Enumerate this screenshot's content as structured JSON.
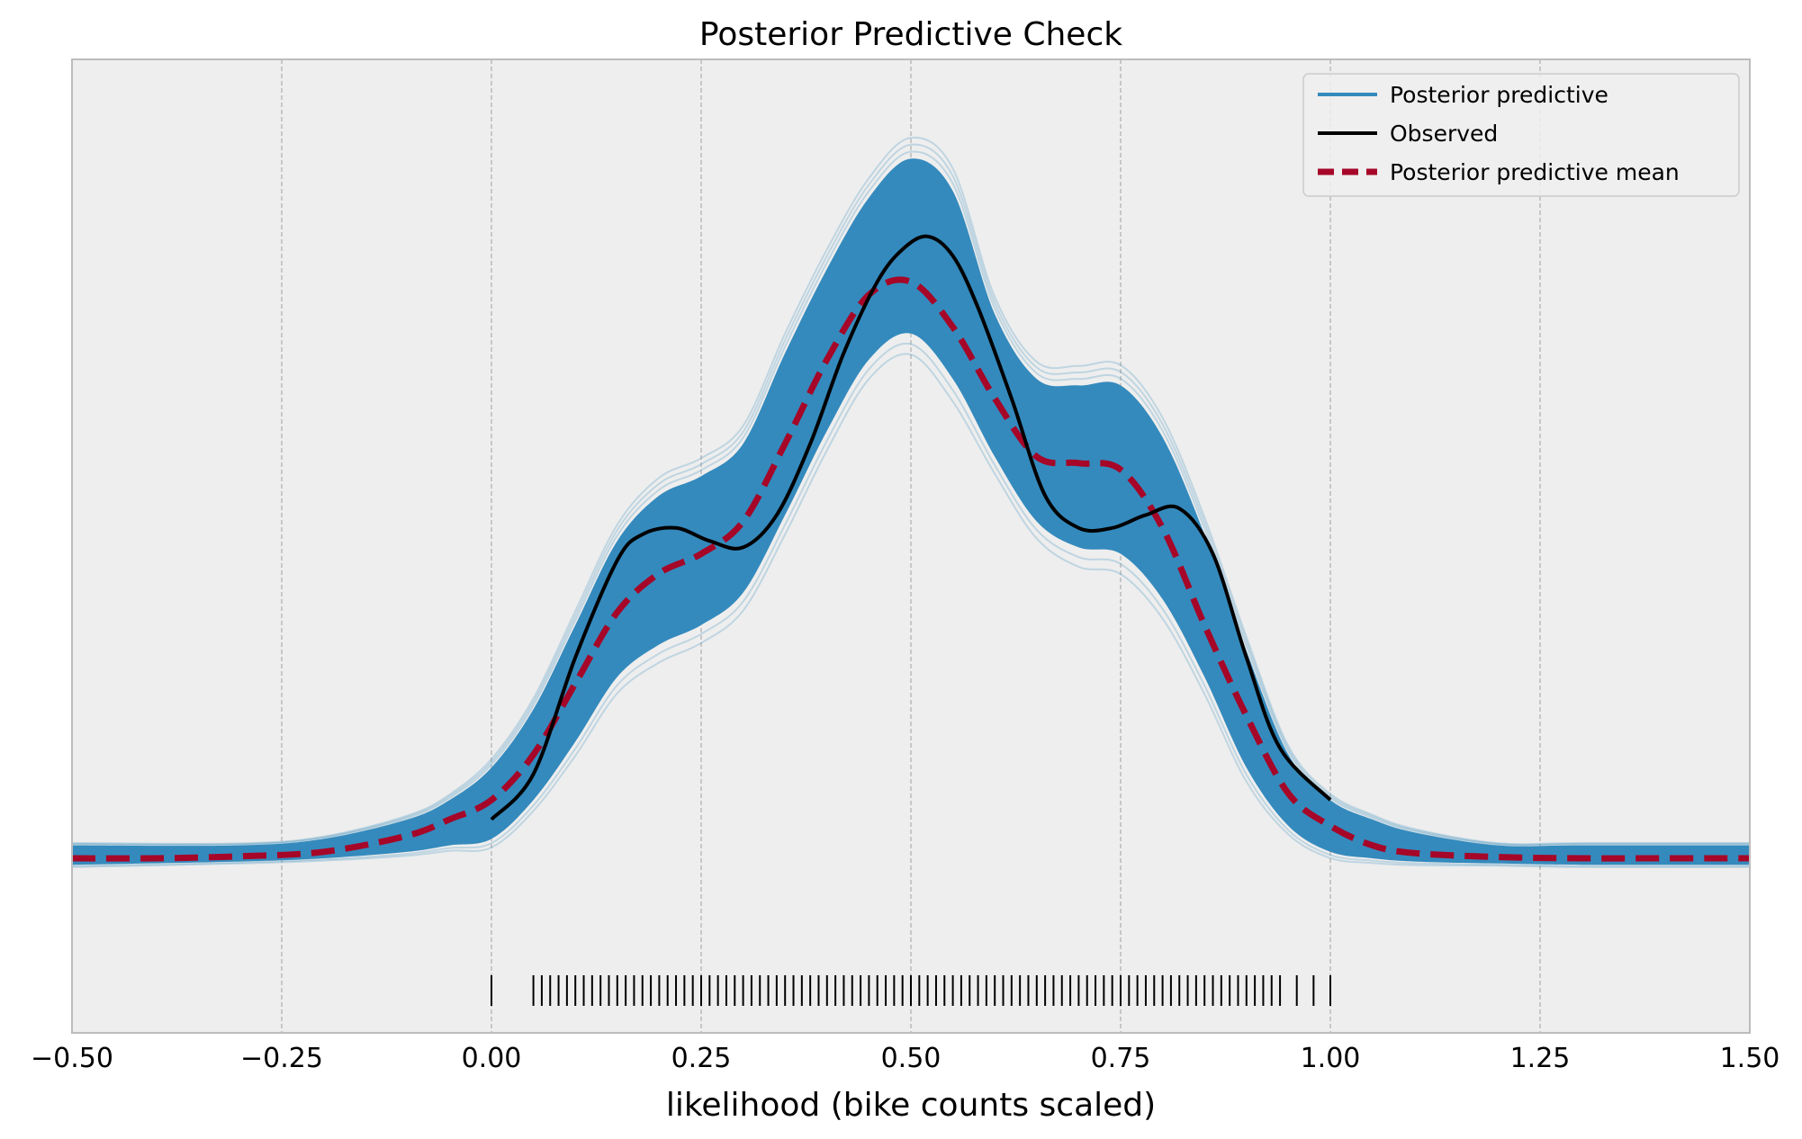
{
  "chart_data": {
    "type": "line",
    "title": "Posterior Predictive Check",
    "xlabel": "likelihood (bike counts scaled)",
    "ylabel": "",
    "xlim": [
      -0.5,
      1.5
    ],
    "ylim": [
      -0.28,
      1.0
    ],
    "y_ticks_shown": false,
    "x_ticks": [
      -0.5,
      -0.25,
      0.0,
      0.25,
      0.5,
      0.75,
      1.0,
      1.25,
      1.5
    ],
    "x_tick_labels": [
      "−0.50",
      "−0.25",
      "0.00",
      "0.25",
      "0.50",
      "0.75",
      "1.00",
      "1.25",
      "1.50"
    ],
    "grid": "vertical dashed",
    "legend_position": "top-right",
    "colors": {
      "posterior_predictive": "#348abd",
      "observed": "#000000",
      "posterior_predictive_mean": "#a60628",
      "axes_background": "#eeeeee",
      "axes_border": "#bcbcbc",
      "grid": "#b2b2b2"
    },
    "series": [
      {
        "name": "Observed",
        "style": "solid",
        "x": [
          0.0,
          0.05,
          0.1,
          0.15,
          0.18,
          0.22,
          0.26,
          0.3,
          0.34,
          0.38,
          0.42,
          0.46,
          0.49,
          0.52,
          0.55,
          0.58,
          0.62,
          0.66,
          0.7,
          0.74,
          0.78,
          0.82,
          0.86,
          0.9,
          0.94,
          1.0
        ],
        "y": [
          0.06,
          0.13,
          0.31,
          0.46,
          0.5,
          0.51,
          0.49,
          0.48,
          0.53,
          0.64,
          0.78,
          0.89,
          0.94,
          0.96,
          0.93,
          0.85,
          0.71,
          0.56,
          0.51,
          0.51,
          0.53,
          0.54,
          0.47,
          0.31,
          0.17,
          0.09
        ]
      },
      {
        "name": "Posterior predictive mean",
        "style": "dashed",
        "x": [
          -0.5,
          -0.4,
          -0.3,
          -0.2,
          -0.1,
          -0.05,
          0.0,
          0.05,
          0.1,
          0.15,
          0.2,
          0.25,
          0.3,
          0.35,
          0.4,
          0.45,
          0.5,
          0.55,
          0.6,
          0.65,
          0.7,
          0.75,
          0.8,
          0.85,
          0.9,
          0.95,
          1.0,
          1.05,
          1.1,
          1.2,
          1.3,
          1.4,
          1.5
        ],
        "y": [
          0.0,
          0.0,
          0.003,
          0.01,
          0.035,
          0.06,
          0.09,
          0.16,
          0.27,
          0.38,
          0.44,
          0.47,
          0.52,
          0.64,
          0.77,
          0.87,
          0.89,
          0.82,
          0.71,
          0.62,
          0.61,
          0.6,
          0.51,
          0.36,
          0.22,
          0.1,
          0.05,
          0.02,
          0.008,
          0.002,
          0.0,
          0.0,
          0.0
        ]
      },
      {
        "name": "Posterior predictive",
        "style": "band of many draws",
        "x": [
          -0.5,
          -0.3,
          -0.2,
          -0.1,
          -0.05,
          0.0,
          0.05,
          0.1,
          0.15,
          0.2,
          0.25,
          0.3,
          0.35,
          0.4,
          0.45,
          0.5,
          0.55,
          0.6,
          0.65,
          0.7,
          0.75,
          0.8,
          0.85,
          0.9,
          0.95,
          1.0,
          1.05,
          1.1,
          1.2,
          1.3,
          1.5
        ],
        "y_lower": [
          -0.01,
          -0.005,
          0.0,
          0.01,
          0.02,
          0.03,
          0.09,
          0.18,
          0.28,
          0.33,
          0.36,
          0.41,
          0.53,
          0.66,
          0.77,
          0.81,
          0.74,
          0.62,
          0.52,
          0.48,
          0.47,
          0.4,
          0.28,
          0.14,
          0.05,
          0.01,
          0.0,
          -0.005,
          -0.008,
          -0.01,
          -0.01
        ],
        "y_upper": [
          0.02,
          0.02,
          0.03,
          0.06,
          0.09,
          0.14,
          0.23,
          0.36,
          0.49,
          0.56,
          0.59,
          0.64,
          0.78,
          0.91,
          1.02,
          1.08,
          1.03,
          0.84,
          0.74,
          0.73,
          0.73,
          0.65,
          0.5,
          0.32,
          0.16,
          0.09,
          0.06,
          0.04,
          0.02,
          0.02,
          0.02
        ]
      }
    ],
    "rug_x": [
      0.0,
      0.05,
      0.06,
      0.07,
      0.08,
      0.09,
      0.1,
      0.11,
      0.12,
      0.13,
      0.14,
      0.15,
      0.16,
      0.17,
      0.18,
      0.19,
      0.2,
      0.21,
      0.22,
      0.23,
      0.24,
      0.25,
      0.26,
      0.27,
      0.28,
      0.29,
      0.3,
      0.31,
      0.32,
      0.33,
      0.34,
      0.35,
      0.36,
      0.37,
      0.38,
      0.39,
      0.4,
      0.41,
      0.42,
      0.43,
      0.44,
      0.45,
      0.46,
      0.47,
      0.48,
      0.49,
      0.5,
      0.51,
      0.52,
      0.53,
      0.54,
      0.55,
      0.56,
      0.57,
      0.58,
      0.59,
      0.6,
      0.61,
      0.62,
      0.63,
      0.64,
      0.65,
      0.66,
      0.67,
      0.68,
      0.69,
      0.7,
      0.71,
      0.72,
      0.73,
      0.74,
      0.75,
      0.76,
      0.77,
      0.78,
      0.79,
      0.8,
      0.81,
      0.82,
      0.83,
      0.84,
      0.85,
      0.86,
      0.87,
      0.88,
      0.89,
      0.9,
      0.91,
      0.92,
      0.93,
      0.94,
      0.96,
      0.98,
      1.0
    ]
  },
  "legend": {
    "items": [
      {
        "label": "Posterior predictive",
        "color": "#348abd",
        "style": "solid"
      },
      {
        "label": "Observed",
        "color": "#000000",
        "style": "solid"
      },
      {
        "label": "Posterior predictive mean",
        "color": "#a60628",
        "style": "dashed"
      }
    ]
  }
}
